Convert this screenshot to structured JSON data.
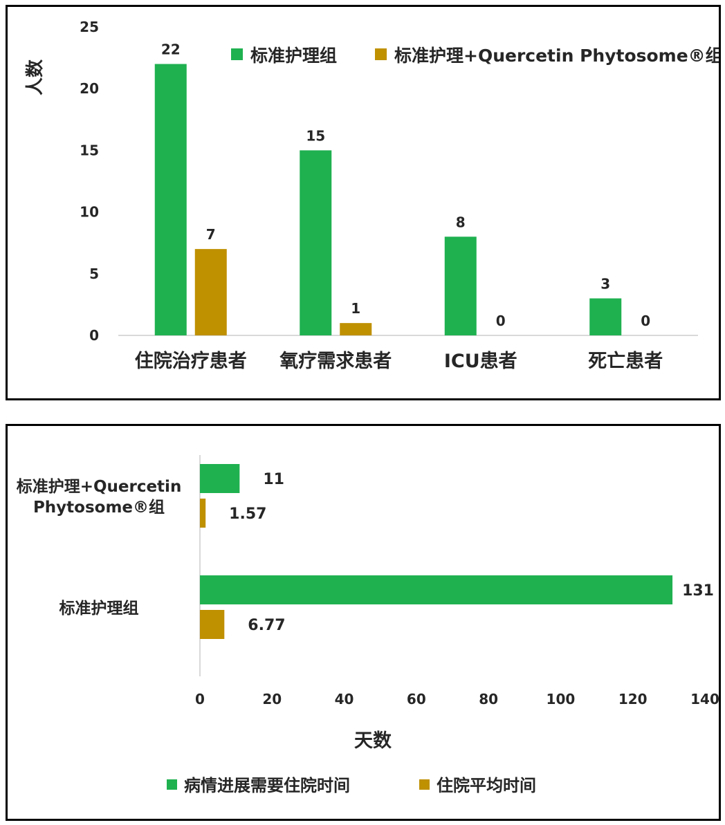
{
  "chart_data": [
    {
      "type": "bar",
      "title": "",
      "xlabel": "",
      "ylabel": "人数",
      "ylim": [
        0,
        25
      ],
      "yticks": [
        "0",
        "5",
        "10",
        "15",
        "20",
        "25"
      ],
      "categories": [
        "住院治疗患者",
        "氧疗需求患者",
        "ICU患者",
        "死亡患者"
      ],
      "series": [
        {
          "name": "标准护理组",
          "color": "#1FB150",
          "values": [
            22,
            15,
            8,
            3
          ]
        },
        {
          "name": "标准护理+Quercetin Phytosome®组",
          "color": "#BF9000",
          "values": [
            7,
            1,
            0,
            0
          ]
        }
      ],
      "legend": "top-right",
      "grid": false
    },
    {
      "type": "bar",
      "orientation": "horizontal",
      "title": "",
      "xlabel": "天数",
      "ylabel": "",
      "xlim": [
        0,
        140
      ],
      "xticks": [
        "0",
        "20",
        "40",
        "60",
        "80",
        "100",
        "120",
        "140"
      ],
      "categories": [
        "标准护理+Quercetin Phytosome®组",
        "标准护理组"
      ],
      "category_lines": [
        [
          "标准护理+Quercetin",
          "Phytosome®组"
        ],
        [
          "标准护理组"
        ]
      ],
      "series": [
        {
          "name": "病情进展需要住院时间",
          "color": "#1FB150",
          "values": [
            11,
            131
          ],
          "labels": [
            "11",
            "131"
          ]
        },
        {
          "name": "住院平均时间",
          "color": "#BF9000",
          "values": [
            1.57,
            6.77
          ],
          "labels": [
            "1.57",
            "6.77"
          ]
        }
      ],
      "legend": "bottom",
      "grid": false
    }
  ]
}
